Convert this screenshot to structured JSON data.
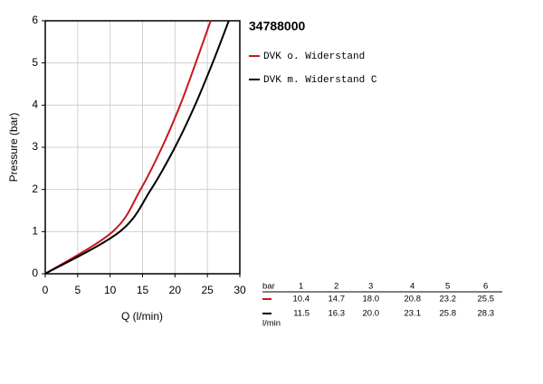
{
  "chart_data": {
    "type": "line",
    "title": "34788000",
    "x_label": "Q (l/min)",
    "y_label": "Pressure (bar)",
    "series": [
      {
        "name": "DVK o. Widerstand",
        "color": "#c8151d",
        "x": [
          0,
          10.4,
          14.7,
          18.0,
          20.8,
          23.2,
          25.5
        ],
        "values": [
          0,
          1,
          2,
          3,
          4,
          5,
          6
        ]
      },
      {
        "name": "DVK m. Widerstand C",
        "color": "#000000",
        "x": [
          0,
          11.5,
          16.3,
          20.0,
          23.1,
          25.8,
          28.3
        ],
        "values": [
          0,
          1,
          2,
          3,
          4,
          5,
          6
        ]
      }
    ],
    "xlim": [
      0,
      30
    ],
    "xticks": [
      0,
      5,
      10,
      15,
      20,
      25,
      30
    ],
    "ylim": [
      0,
      6
    ],
    "yticks": [
      0,
      1,
      2,
      3,
      4,
      5,
      6
    ],
    "grid": true,
    "table": {
      "header_label": "bar",
      "header": [
        "1",
        "2",
        "3",
        "4",
        "5",
        "6"
      ],
      "unit_label": "l/min",
      "rows": [
        [
          "10.4",
          "14.7",
          "18.0",
          "20.8",
          "23.2",
          "25.5"
        ],
        [
          "11.5",
          "16.3",
          "20.0",
          "23.1",
          "25.8",
          "28.3"
        ]
      ]
    }
  }
}
